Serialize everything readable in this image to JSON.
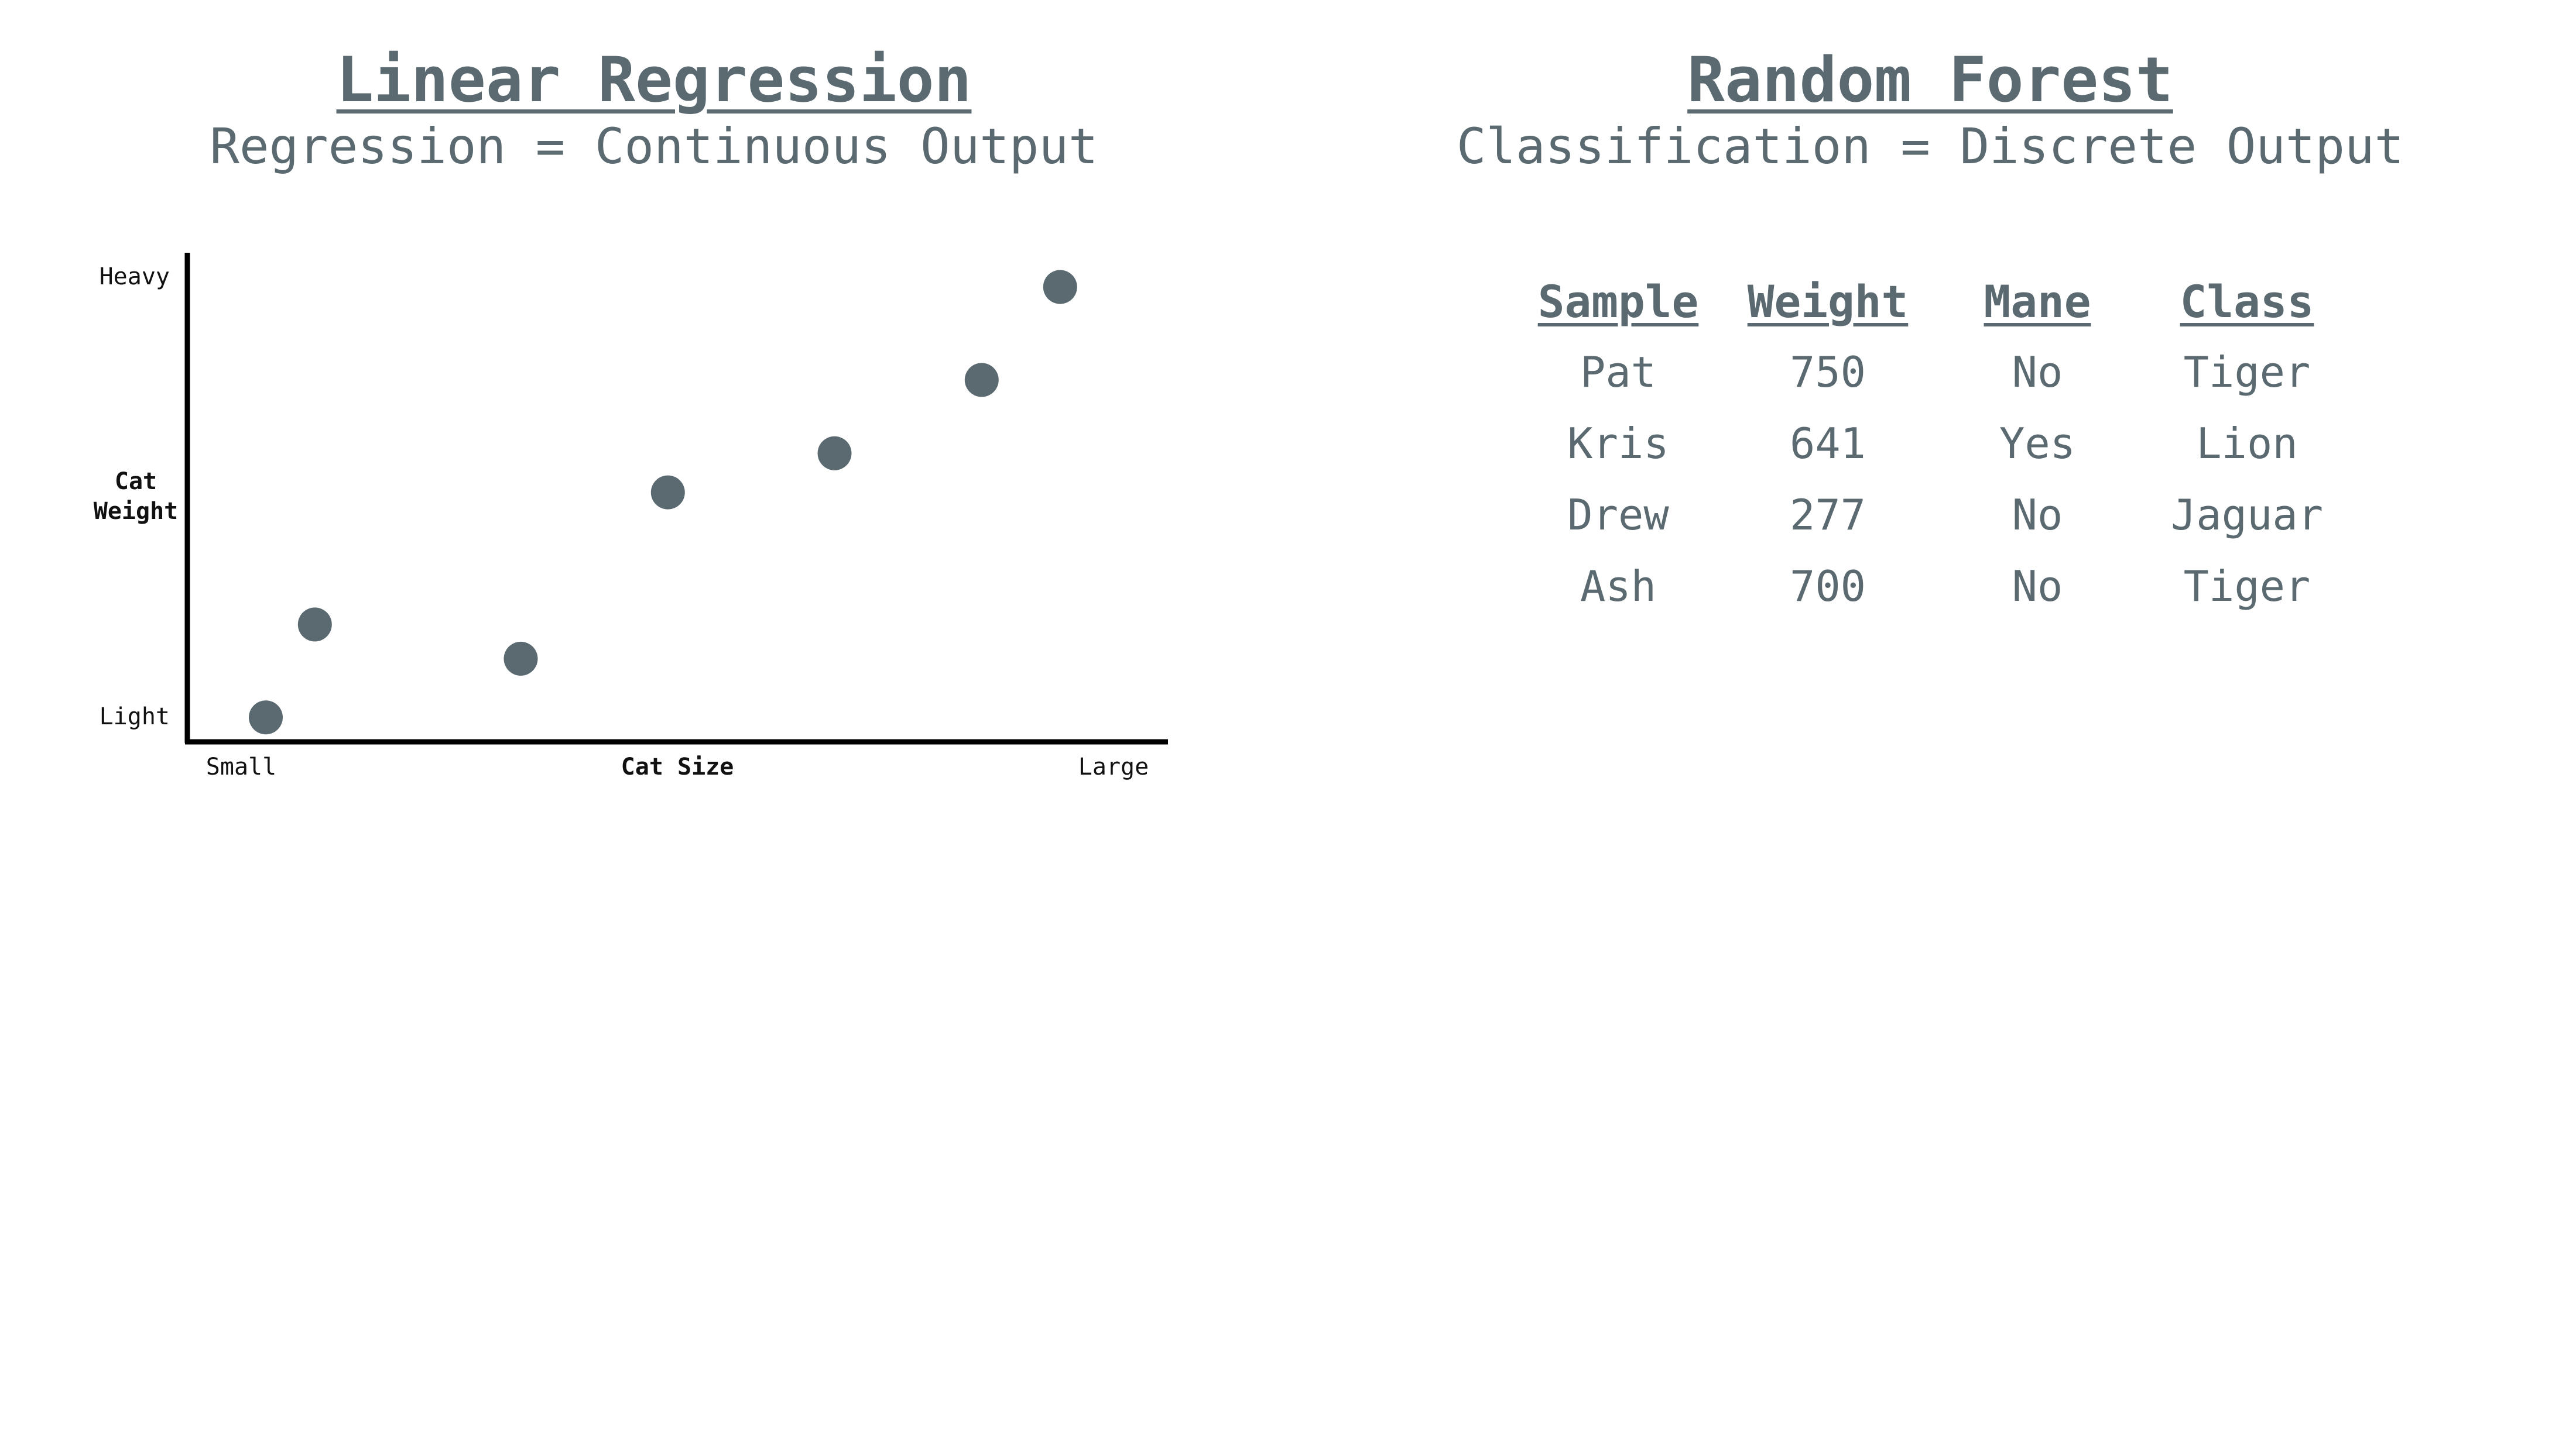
{
  "left_panel": {
    "title": "Linear Regression",
    "subtitle": "Regression = Continuous Output"
  },
  "right_panel": {
    "title": "Random Forest",
    "subtitle": "Classification = Discrete Output"
  },
  "chart_data": {
    "type": "scatter",
    "xlabel": "Cat Size",
    "ylabel": [
      "Cat",
      "Weight"
    ],
    "x_tick_labels": [
      "Small",
      "Large"
    ],
    "y_tick_labels": [
      "Light",
      "Heavy"
    ],
    "xlim": [
      0,
      10
    ],
    "ylim": [
      0,
      10
    ],
    "point_color": "#5a6a70",
    "axis_color": "#000000",
    "grid": false,
    "points": [
      {
        "x": 0.8,
        "y": 0.5
      },
      {
        "x": 1.3,
        "y": 2.4
      },
      {
        "x": 3.4,
        "y": 1.7
      },
      {
        "x": 4.9,
        "y": 5.1
      },
      {
        "x": 6.6,
        "y": 5.9
      },
      {
        "x": 8.1,
        "y": 7.4
      },
      {
        "x": 8.9,
        "y": 9.3
      }
    ]
  },
  "table": {
    "headers": [
      "Sample",
      "Weight",
      "Mane",
      "Class"
    ],
    "rows": [
      [
        "Pat",
        "750",
        "No",
        "Tiger"
      ],
      [
        "Kris",
        "641",
        "Yes",
        "Lion"
      ],
      [
        "Drew",
        "277",
        "No",
        "Jaguar"
      ],
      [
        "Ash",
        "700",
        "No",
        "Tiger"
      ]
    ]
  }
}
